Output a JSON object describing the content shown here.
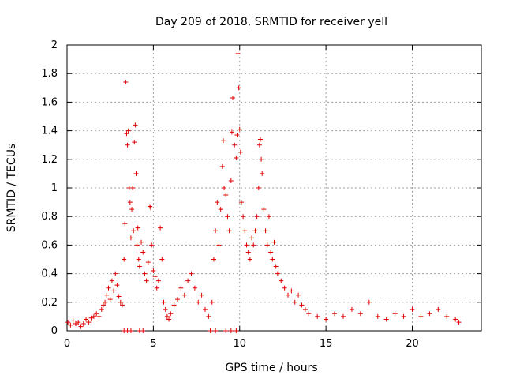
{
  "chart_data": {
    "type": "scatter",
    "title": "Day 209 of 2018, SRMTID for receiver yell",
    "xlabel": "GPS time / hours",
    "ylabel": "SRMTID / TECUs",
    "xlim": [
      0,
      24
    ],
    "ylim": [
      0,
      2
    ],
    "xticks": [
      0,
      5,
      10,
      15,
      20
    ],
    "yticks": [
      0,
      0.2,
      0.4,
      0.6,
      0.8,
      1,
      1.2,
      1.4,
      1.6,
      1.8,
      2
    ],
    "xtick_labels": [
      "0",
      "5",
      "10",
      "15",
      "20"
    ],
    "ytick_labels": [
      "0",
      "0.2",
      "0.4",
      "0.6",
      "0.8",
      "1",
      "1.2",
      "1.4",
      "1.6",
      "1.8",
      "2"
    ],
    "grid": true,
    "marker": "plus",
    "marker_color": "#e00000",
    "series": [
      {
        "name": "SRMTID",
        "points": [
          [
            0.05,
            0.06
          ],
          [
            0.2,
            0.04
          ],
          [
            0.35,
            0.07
          ],
          [
            0.5,
            0.05
          ],
          [
            0.65,
            0.06
          ],
          [
            0.8,
            0.03
          ],
          [
            0.95,
            0.05
          ],
          [
            1.1,
            0.08
          ],
          [
            1.25,
            0.06
          ],
          [
            1.4,
            0.09
          ],
          [
            1.55,
            0.1
          ],
          [
            1.7,
            0.12
          ],
          [
            1.85,
            0.1
          ],
          [
            2.0,
            0.15
          ],
          [
            2.1,
            0.18
          ],
          [
            2.2,
            0.2
          ],
          [
            2.3,
            0.25
          ],
          [
            2.4,
            0.3
          ],
          [
            2.5,
            0.22
          ],
          [
            2.6,
            0.35
          ],
          [
            2.7,
            0.28
          ],
          [
            2.8,
            0.4
          ],
          [
            2.9,
            0.32
          ],
          [
            3.0,
            0.24
          ],
          [
            3.1,
            0.2
          ],
          [
            3.2,
            0.18
          ],
          [
            3.3,
            0.5
          ],
          [
            3.35,
            0.75
          ],
          [
            3.4,
            1.74
          ],
          [
            3.45,
            1.38
          ],
          [
            3.5,
            1.3
          ],
          [
            3.55,
            1.4
          ],
          [
            3.6,
            1.0
          ],
          [
            3.65,
            0.9
          ],
          [
            3.7,
            0.65
          ],
          [
            3.75,
            0.85
          ],
          [
            3.8,
            1.0
          ],
          [
            3.85,
            0.7
          ],
          [
            3.9,
            1.32
          ],
          [
            3.95,
            1.44
          ],
          [
            4.0,
            1.1
          ],
          [
            4.05,
            0.6
          ],
          [
            4.1,
            0.72
          ],
          [
            4.15,
            0.5
          ],
          [
            4.2,
            0.45
          ],
          [
            4.3,
            0.62
          ],
          [
            4.4,
            0.55
          ],
          [
            4.5,
            0.4
          ],
          [
            4.6,
            0.35
          ],
          [
            4.7,
            0.48
          ],
          [
            4.8,
            0.87
          ],
          [
            4.85,
            0.86
          ],
          [
            4.9,
            0.6
          ],
          [
            5.0,
            0.42
          ],
          [
            5.1,
            0.38
          ],
          [
            5.2,
            0.3
          ],
          [
            5.3,
            0.35
          ],
          [
            5.4,
            0.72
          ],
          [
            5.5,
            0.5
          ],
          [
            5.6,
            0.2
          ],
          [
            5.7,
            0.15
          ],
          [
            5.8,
            0.1
          ],
          [
            5.9,
            0.08
          ],
          [
            6.0,
            0.12
          ],
          [
            6.2,
            0.18
          ],
          [
            6.4,
            0.22
          ],
          [
            6.6,
            0.3
          ],
          [
            6.8,
            0.25
          ],
          [
            7.0,
            0.35
          ],
          [
            7.2,
            0.4
          ],
          [
            7.4,
            0.3
          ],
          [
            7.6,
            0.2
          ],
          [
            7.8,
            0.25
          ],
          [
            8.0,
            0.15
          ],
          [
            8.2,
            0.1
          ],
          [
            8.4,
            0.2
          ],
          [
            8.5,
            0.5
          ],
          [
            8.6,
            0.7
          ],
          [
            8.7,
            0.9
          ],
          [
            8.8,
            0.6
          ],
          [
            8.9,
            0.85
          ],
          [
            9.0,
            1.15
          ],
          [
            9.05,
            1.33
          ],
          [
            9.1,
            1.0
          ],
          [
            9.2,
            0.95
          ],
          [
            9.3,
            0.8
          ],
          [
            9.4,
            0.7
          ],
          [
            9.5,
            1.05
          ],
          [
            9.55,
            1.39
          ],
          [
            9.6,
            1.63
          ],
          [
            9.7,
            1.3
          ],
          [
            9.8,
            1.21
          ],
          [
            9.85,
            1.37
          ],
          [
            9.9,
            1.94
          ],
          [
            9.95,
            1.7
          ],
          [
            10.0,
            1.41
          ],
          [
            10.05,
            1.25
          ],
          [
            10.1,
            0.9
          ],
          [
            10.2,
            0.8
          ],
          [
            10.3,
            0.7
          ],
          [
            10.4,
            0.6
          ],
          [
            10.5,
            0.55
          ],
          [
            10.6,
            0.5
          ],
          [
            10.7,
            0.65
          ],
          [
            10.8,
            0.6
          ],
          [
            10.9,
            0.7
          ],
          [
            11.0,
            0.8
          ],
          [
            11.1,
            1.0
          ],
          [
            11.15,
            1.3
          ],
          [
            11.2,
            1.34
          ],
          [
            11.25,
            1.2
          ],
          [
            11.3,
            1.1
          ],
          [
            11.4,
            0.85
          ],
          [
            11.5,
            0.7
          ],
          [
            11.6,
            0.6
          ],
          [
            11.7,
            0.8
          ],
          [
            11.8,
            0.55
          ],
          [
            11.9,
            0.5
          ],
          [
            12.0,
            0.62
          ],
          [
            12.1,
            0.45
          ],
          [
            12.2,
            0.4
          ],
          [
            12.4,
            0.35
          ],
          [
            12.6,
            0.3
          ],
          [
            12.8,
            0.25
          ],
          [
            13.0,
            0.28
          ],
          [
            13.2,
            0.2
          ],
          [
            13.4,
            0.25
          ],
          [
            13.6,
            0.18
          ],
          [
            13.8,
            0.15
          ],
          [
            14.0,
            0.12
          ],
          [
            14.5,
            0.1
          ],
          [
            15.0,
            0.08
          ],
          [
            15.5,
            0.12
          ],
          [
            16.0,
            0.1
          ],
          [
            16.5,
            0.15
          ],
          [
            17.0,
            0.12
          ],
          [
            17.5,
            0.2
          ],
          [
            18.0,
            0.1
          ],
          [
            18.5,
            0.08
          ],
          [
            19.0,
            0.12
          ],
          [
            19.5,
            0.1
          ],
          [
            20.0,
            0.15
          ],
          [
            20.5,
            0.1
          ],
          [
            21.0,
            0.12
          ],
          [
            21.5,
            0.15
          ],
          [
            22.0,
            0.1
          ],
          [
            22.5,
            0.08
          ],
          [
            22.7,
            0.06
          ],
          [
            3.3,
            0.0
          ],
          [
            3.5,
            0.0
          ],
          [
            3.7,
            0.0
          ],
          [
            4.2,
            0.0
          ],
          [
            4.4,
            0.0
          ],
          [
            8.3,
            0.0
          ],
          [
            8.6,
            0.0
          ],
          [
            9.2,
            0.0
          ],
          [
            9.5,
            0.0
          ],
          [
            9.8,
            0.0
          ]
        ]
      }
    ]
  }
}
